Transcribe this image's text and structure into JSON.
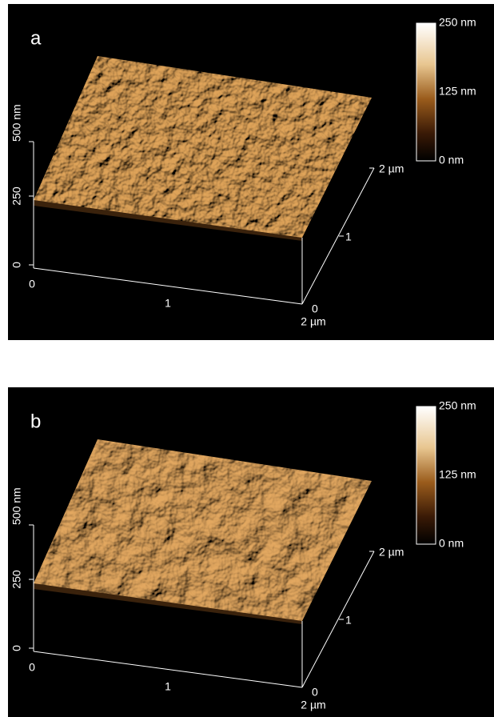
{
  "panels": [
    {
      "label": "a",
      "z_axis": {
        "ticks": [
          "500 nm",
          "250",
          "0"
        ]
      },
      "x_axis": {
        "ticks": [
          "0",
          "1",
          "2 µm"
        ]
      },
      "y_axis": {
        "ticks": [
          "0",
          "1",
          "2 µm"
        ]
      },
      "colorbar": {
        "ticks": [
          "250 nm",
          "125 nm",
          "0 nm"
        ]
      }
    },
    {
      "label": "b",
      "z_axis": {
        "ticks": [
          "500 nm",
          "250",
          "0"
        ]
      },
      "x_axis": {
        "ticks": [
          "0",
          "1",
          "2 µm"
        ]
      },
      "y_axis": {
        "ticks": [
          "0",
          "1",
          "2 µm"
        ]
      },
      "colorbar": {
        "ticks": [
          "250 nm",
          "125 nm",
          "0 nm"
        ]
      }
    }
  ]
}
